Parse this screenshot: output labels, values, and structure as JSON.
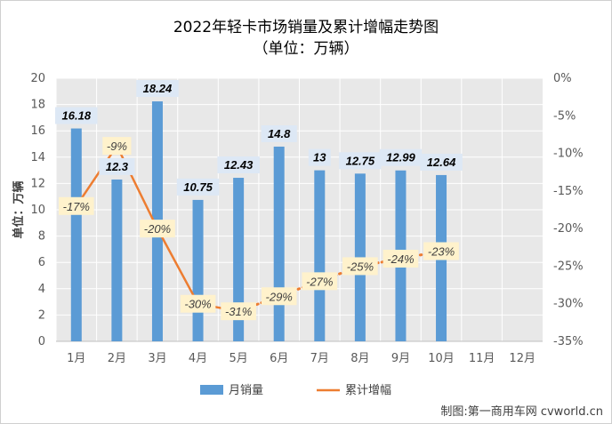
{
  "header": {
    "title": "2022年轻卡市场销量及累计增幅走势图",
    "subtitle": "（单位：万辆）"
  },
  "credit": "制图:第一商用车网 cvworld.cn",
  "colors": {
    "bar": "#5b9bd5",
    "line": "#ed7d31",
    "plot_bg": "#e8e8e8",
    "grid": "#ffffff",
    "bar_label_bg": "#dde8f5",
    "line_label_bg": "#fff2cc"
  },
  "chart_data": {
    "type": "bar+line",
    "categories": [
      "1月",
      "2月",
      "3月",
      "4月",
      "5月",
      "6月",
      "7月",
      "8月",
      "9月",
      "10月",
      "11月",
      "12月"
    ],
    "y_left": {
      "label": "单位：万辆",
      "min": 0,
      "max": 20,
      "step": 2,
      "ticks": [
        "0",
        "2",
        "4",
        "6",
        "8",
        "10",
        "12",
        "14",
        "16",
        "18",
        "20"
      ]
    },
    "y_right": {
      "min": -35,
      "max": 0,
      "step": 5,
      "ticks": [
        "-35%",
        "-30%",
        "-25%",
        "-20%",
        "-15%",
        "-10%",
        "-5%",
        "0%"
      ]
    },
    "series": [
      {
        "name": "月销量",
        "type": "bar",
        "axis": "left",
        "values": [
          16.18,
          12.3,
          18.24,
          10.75,
          12.43,
          14.8,
          13,
          12.75,
          12.99,
          12.64,
          null,
          null
        ],
        "labels": [
          "16.18",
          "12.3",
          "18.24",
          "10.75",
          "12.43",
          "14.8",
          "13",
          "12.75",
          "12.99",
          "12.64",
          "",
          ""
        ]
      },
      {
        "name": "累计增幅",
        "type": "line",
        "axis": "right",
        "values": [
          -17,
          -9,
          -20,
          -30,
          -31,
          -29,
          -27,
          -25,
          -24,
          -23,
          null,
          null
        ],
        "labels": [
          "-17%",
          "-9%",
          "-20%",
          "-30%",
          "-31%",
          "-29%",
          "-27%",
          "-25%",
          "-24%",
          "-23%",
          "",
          ""
        ]
      }
    ],
    "grid": true,
    "legend": "bottom"
  }
}
